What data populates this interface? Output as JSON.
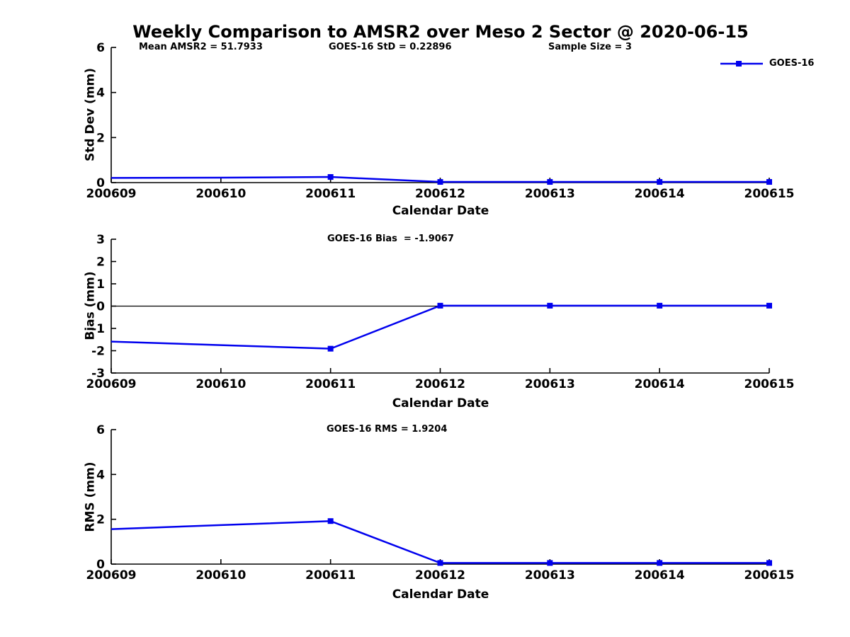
{
  "title": "Weekly Comparison to AMSR2 over Meso 2 Sector @ 2020-06-15",
  "legend": {
    "label": "GOES-16"
  },
  "colors": {
    "line": "#0000ee",
    "axis": "#000000",
    "background": "#ffffff"
  },
  "chart_data": [
    {
      "type": "line",
      "ylabel": "Std Dev (mm)",
      "xlabel": "Calendar Date",
      "x": [
        "200609",
        "200610",
        "200611",
        "200612",
        "200613",
        "200614",
        "200615"
      ],
      "ylim": [
        0,
        6
      ],
      "yticks": [
        0,
        2,
        4,
        6
      ],
      "zero_line": false,
      "annotations": [
        "Mean AMSR2 = 51.7933",
        "GOES-16 StD = 0.22896",
        "Sample Size = 3"
      ],
      "legend_position": "top-right-outside",
      "series": [
        {
          "name": "GOES-16",
          "values": [
            0.21,
            0.22,
            0.25,
            0.03,
            0.03,
            0.03,
            0.03
          ],
          "marker": "square",
          "marker_indices": [
            2,
            3,
            4,
            5,
            6
          ]
        }
      ]
    },
    {
      "type": "line",
      "ylabel": "Bias (mm)",
      "xlabel": "Calendar Date",
      "x": [
        "200609",
        "200610",
        "200611",
        "200612",
        "200613",
        "200614",
        "200615"
      ],
      "ylim": [
        -3,
        3
      ],
      "yticks": [
        -3,
        -2,
        -1,
        0,
        1,
        2,
        3
      ],
      "zero_line": true,
      "annotations": [
        "GOES-16 Bias  = -1.9067"
      ],
      "series": [
        {
          "name": "GOES-16",
          "values": [
            -1.59,
            -1.75,
            -1.91,
            0.02,
            0.02,
            0.02,
            0.02
          ],
          "marker": "square",
          "marker_indices": [
            2,
            3,
            4,
            5,
            6
          ]
        }
      ]
    },
    {
      "type": "line",
      "ylabel": "RMS (mm)",
      "xlabel": "Calendar Date",
      "x": [
        "200609",
        "200610",
        "200611",
        "200612",
        "200613",
        "200614",
        "200615"
      ],
      "ylim": [
        0,
        6
      ],
      "yticks": [
        0,
        2,
        4,
        6
      ],
      "zero_line": false,
      "annotations": [
        "GOES-16 RMS = 1.9204"
      ],
      "series": [
        {
          "name": "GOES-16",
          "values": [
            1.56,
            1.74,
            1.92,
            0.05,
            0.05,
            0.05,
            0.05
          ],
          "marker": "square",
          "marker_indices": [
            2,
            3,
            4,
            5,
            6
          ]
        }
      ]
    }
  ]
}
